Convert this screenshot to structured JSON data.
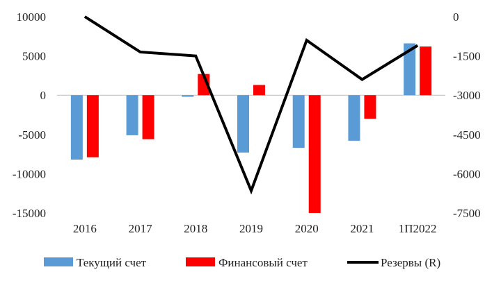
{
  "chart_data": {
    "type": "bar",
    "categories": [
      "2016",
      "2017",
      "2018",
      "2019",
      "2020",
      "2021",
      "1П2022"
    ],
    "series": [
      {
        "name": "Текущий счет",
        "kind": "bar",
        "axis": "left",
        "color": "#5B9BD5",
        "values": [
          -8200,
          -5100,
          -200,
          -7300,
          -6700,
          -5800,
          6600
        ]
      },
      {
        "name": "Финансовый счет",
        "kind": "bar",
        "axis": "left",
        "color": "#FF0000",
        "values": [
          -7900,
          -5600,
          2700,
          1300,
          -15000,
          -3000,
          6200
        ]
      },
      {
        "name": "Резервы (R)",
        "kind": "line",
        "axis": "right",
        "color": "#000000",
        "values": [
          0,
          -1350,
          -1500,
          -6650,
          -900,
          -2400,
          -1100
        ]
      }
    ],
    "y_left": {
      "min": -15000,
      "max": 10000,
      "ticks": [
        "10000",
        "5000",
        "0",
        "-5000",
        "-10000",
        "-15000"
      ]
    },
    "y_right": {
      "min": -7500,
      "max": 0,
      "ticks": [
        "0",
        "-1500",
        "-3000",
        "-4500",
        "-6000",
        "-7500"
      ]
    },
    "grid": false,
    "legend_position": "bottom"
  }
}
